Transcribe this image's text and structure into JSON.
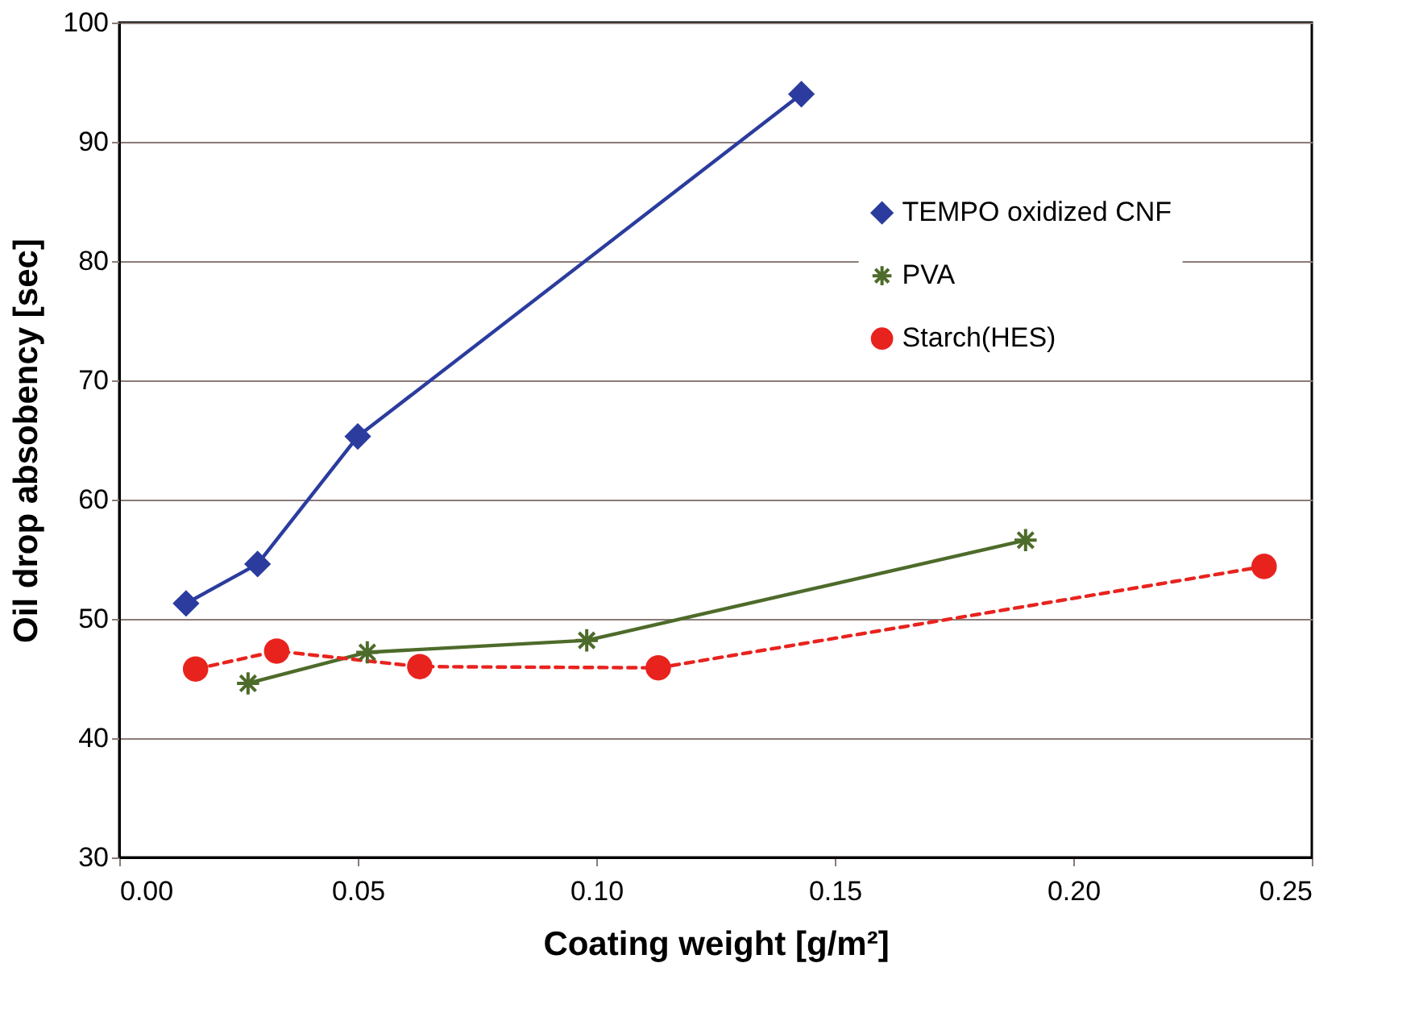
{
  "chart_data": {
    "type": "line",
    "xlabel": "Coating weight [g/m²]",
    "ylabel": "Oil drop absobency [sec]",
    "xlim": [
      0,
      0.25
    ],
    "xticks": [
      {
        "value": 0,
        "label": "0.00"
      },
      {
        "value": 0.05,
        "label": "0.05"
      },
      {
        "value": 0.1,
        "label": "0.10"
      },
      {
        "value": 0.15,
        "label": "0.15"
      },
      {
        "value": 0.2,
        "label": "0.20"
      },
      {
        "value": 0.25,
        "label": "0.25"
      }
    ],
    "ylim": [
      30,
      100
    ],
    "yticks": [
      30,
      40,
      50,
      60,
      70,
      80,
      90,
      100
    ],
    "grid": "y",
    "legend": "right",
    "series": [
      {
        "name": "TEMPO oxidized CNF",
        "color": "#2b3c9e",
        "marker": "diamond",
        "line_style": "solid",
        "x": [
          0.014,
          0.029,
          0.05,
          0.143
        ],
        "values": [
          51.3,
          54.6,
          65.3,
          94.0
        ]
      },
      {
        "name": "PVA",
        "color": "#4d6b2a",
        "marker": "cross",
        "line_style": "solid",
        "x": [
          0.027,
          0.052,
          0.098,
          0.19
        ],
        "values": [
          44.6,
          47.2,
          48.2,
          56.6
        ]
      },
      {
        "name": "Starch(HES)",
        "color": "#e8231e",
        "marker": "circle",
        "line_style": "dashed",
        "x": [
          0.016,
          0.033,
          0.063,
          0.113,
          0.24
        ],
        "values": [
          45.8,
          47.3,
          46.0,
          45.9,
          54.4
        ]
      }
    ]
  }
}
